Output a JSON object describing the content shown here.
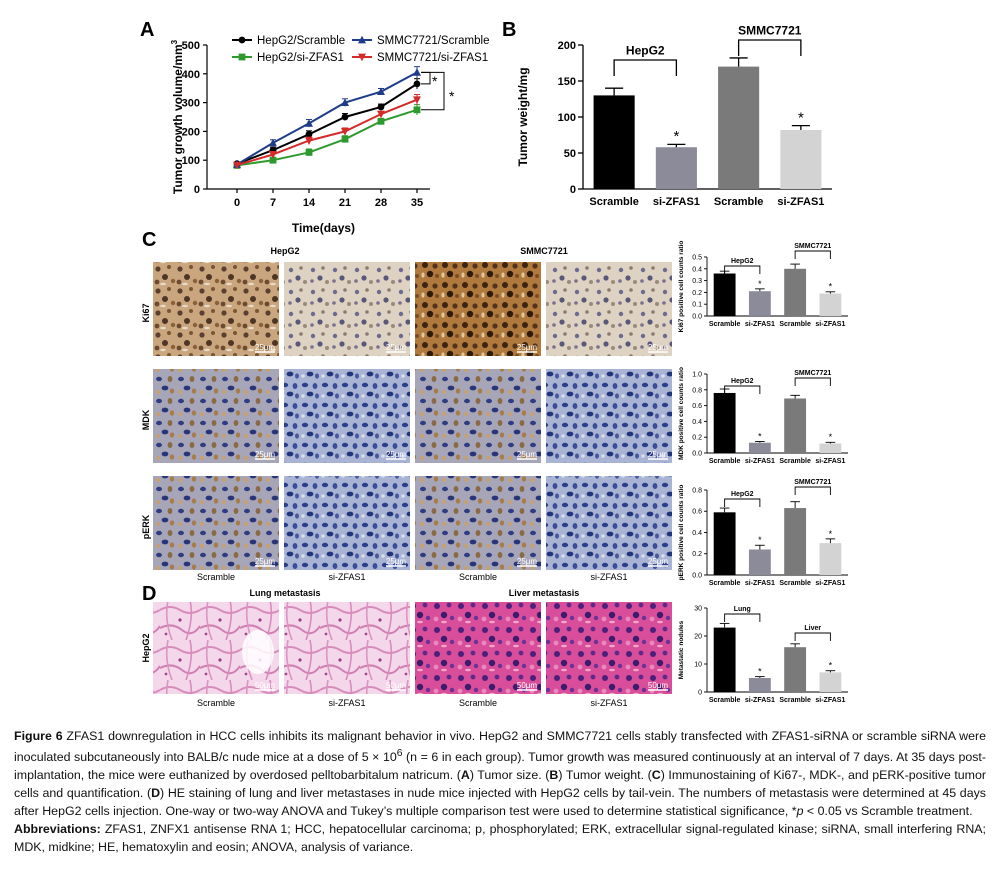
{
  "panels": {
    "A": {
      "letter": "A",
      "chart_data": {
        "type": "line",
        "xlabel": "Time(days)",
        "ylabel_text": "Tumor growth volume/mm",
        "ylabel_sup": "3",
        "x": [
          0,
          7,
          14,
          21,
          28,
          35
        ],
        "ylim": [
          0,
          500
        ],
        "yticks": [
          0,
          100,
          200,
          300,
          400,
          500
        ],
        "series": [
          {
            "name": "HepG2/Scramble",
            "color": "#000000",
            "marker": "circle",
            "values": [
              88,
              135,
              190,
              250,
              285,
              365
            ]
          },
          {
            "name": "HepG2/si-ZFAS1",
            "color": "#2e9a2e",
            "marker": "square",
            "values": [
              82,
              100,
              127,
              173,
              235,
              275
            ]
          },
          {
            "name": "SMMC7721/Scramble",
            "color": "#1f3c88",
            "marker": "triangle",
            "values": [
              85,
              160,
              228,
              300,
              338,
              405
            ]
          },
          {
            "name": "SMMC7721/si-ZFAS1",
            "color": "#d42a2a",
            "marker": "triangle-down",
            "values": [
              83,
              120,
              168,
              200,
              260,
              310
            ]
          }
        ],
        "annotations": [
          "*",
          "*"
        ]
      }
    },
    "B": {
      "letter": "B",
      "chart_data": {
        "type": "bar",
        "ylabel": "Tumor weight/mg",
        "categories": [
          "Scramble",
          "si-ZFAS1",
          "Scramble",
          "si-ZFAS1"
        ],
        "values": [
          130,
          58,
          170,
          82
        ],
        "errors": [
          10,
          4,
          12,
          6
        ],
        "colors": [
          "#000000",
          "#8b8b99",
          "#7a7a7a",
          "#d3d3d3"
        ],
        "ylim": [
          0,
          200
        ],
        "yticks": [
          0,
          50,
          100,
          150,
          200
        ],
        "groups": [
          "HepG2",
          "SMMC7721"
        ],
        "stars": [
          "",
          "*",
          "",
          "*"
        ]
      }
    },
    "C": {
      "letter": "C",
      "col_headers": [
        "HepG2",
        "SMMC7721"
      ],
      "row_labels": [
        "Ki67",
        "MDK",
        "pERK"
      ],
      "bottom_labels": [
        "Scramble",
        "si-ZFAS1",
        "Scramble",
        "si-ZFAS1"
      ],
      "scale": "25μm",
      "charts": [
        {
          "type": "bar",
          "ylabel": "Ki67 positive cell counts ratio",
          "categories": [
            "Scramble",
            "si-ZFAS1",
            "Scramble",
            "si-ZFAS1"
          ],
          "values": [
            0.36,
            0.21,
            0.4,
            0.19
          ],
          "errors": [
            0.02,
            0.02,
            0.04,
            0.015
          ],
          "ylim": [
            0,
            0.5
          ],
          "yticks": [
            "0.0",
            "0.1",
            "0.2",
            "0.3",
            "0.4",
            "0.5"
          ],
          "groups": [
            "HepG2",
            "SMMC7721"
          ],
          "stars": [
            "",
            "*",
            "",
            "*"
          ]
        },
        {
          "type": "bar",
          "ylabel": "MDK positive cell counts ratio",
          "categories": [
            "Scramble",
            "si-ZFAS1",
            "Scramble",
            "si-ZFAS1"
          ],
          "values": [
            0.76,
            0.13,
            0.69,
            0.12
          ],
          "errors": [
            0.05,
            0.015,
            0.04,
            0.015
          ],
          "ylim": [
            0,
            1.0
          ],
          "yticks": [
            "0.0",
            "0.2",
            "0.4",
            "0.6",
            "0.8",
            "1.0"
          ],
          "groups": [
            "HepG2",
            "SMMC7721"
          ],
          "stars": [
            "",
            "*",
            "",
            "*"
          ]
        },
        {
          "type": "bar",
          "ylabel": "pERK positive cell counts ratio",
          "categories": [
            "Scramble",
            "si-ZFAS1",
            "Scramble",
            "si-ZFAS1"
          ],
          "values": [
            0.59,
            0.24,
            0.63,
            0.3
          ],
          "errors": [
            0.04,
            0.04,
            0.06,
            0.04
          ],
          "ylim": [
            0,
            0.8
          ],
          "yticks": [
            "0.0",
            "0.2",
            "0.4",
            "0.6",
            "0.8"
          ],
          "groups": [
            "HepG2",
            "SMMC7721"
          ],
          "stars": [
            "",
            "*",
            "",
            "*"
          ]
        }
      ]
    },
    "D": {
      "letter": "D",
      "col_headers": [
        "Lung metastasis",
        "Liver metastasis"
      ],
      "row_label": "HepG2",
      "bottom_labels": [
        "Scramble",
        "si-ZFAS1",
        "Scramble",
        "si-ZFAS1"
      ],
      "scale": "50μm",
      "chart": {
        "type": "bar",
        "ylabel": "Metastatic nodules",
        "categories": [
          "Scramble",
          "si-ZFAS1",
          "Scramble",
          "si-ZFAS1"
        ],
        "values": [
          23,
          5,
          16,
          7
        ],
        "errors": [
          1.5,
          0.5,
          1.2,
          0.6
        ],
        "ylim": [
          0,
          30
        ],
        "yticks": [
          "0",
          "10",
          "20",
          "30"
        ],
        "groups": [
          "Lung",
          "Liver"
        ],
        "stars": [
          "",
          "*",
          "",
          "*"
        ]
      }
    }
  },
  "bar_colors": [
    "#000000",
    "#8b8b99",
    "#7a7a7a",
    "#d3d3d3"
  ],
  "caption": {
    "fig_label": "Figure 6",
    "fig_text": "ZFAS1 downregulation in HCC cells inhibits its malignant behavior in vivo. HepG2 and SMMC7721 cells stably transfected with ZFAS1-siRNA or scramble siRNA were inoculated subcutaneously into BALB/c nude mice at a dose of 5 × 10",
    "fig_sup": "6",
    "fig_text2": " (n = 6 in each group). Tumor growth was measured continuously at an interval of 7 days. At 35 days post-implantation, the mice were euthanized by overdosed pelltobarbitalum natricum. (",
    "l_A": "A",
    "t_A": ") Tumor size. (",
    "l_B": "B",
    "t_B": ") Tumor weight. (",
    "l_C": "C",
    "t_C": ") Immunostaining of Ki67-, MDK-, and pERK-positive tumor cells and quantification. (",
    "l_D": "D",
    "t_D": ") HE staining of lung and liver metastases in nude mice injected with HepG2 cells by tail-vein. The numbers of metastasis were determined at 45 days after HepG2 cells injection. One-way or two-way ANOVA and Tukey’s multiple comparison test were used to determine statistical significance, *",
    "p_italic": "p",
    "t_end": " < 0.05 vs Scramble treatment.",
    "abbr_label": "Abbreviations:",
    "abbr_text": " ZFAS1, ZNFX1 antisense RNA 1; HCC, hepatocellular carcinoma; p, phosphorylated; ERK, extracellular signal-regulated kinase; siRNA, small interfering RNA; MDK, midkine; HE, hematoxylin and eosin; ANOVA, analysis of variance."
  }
}
